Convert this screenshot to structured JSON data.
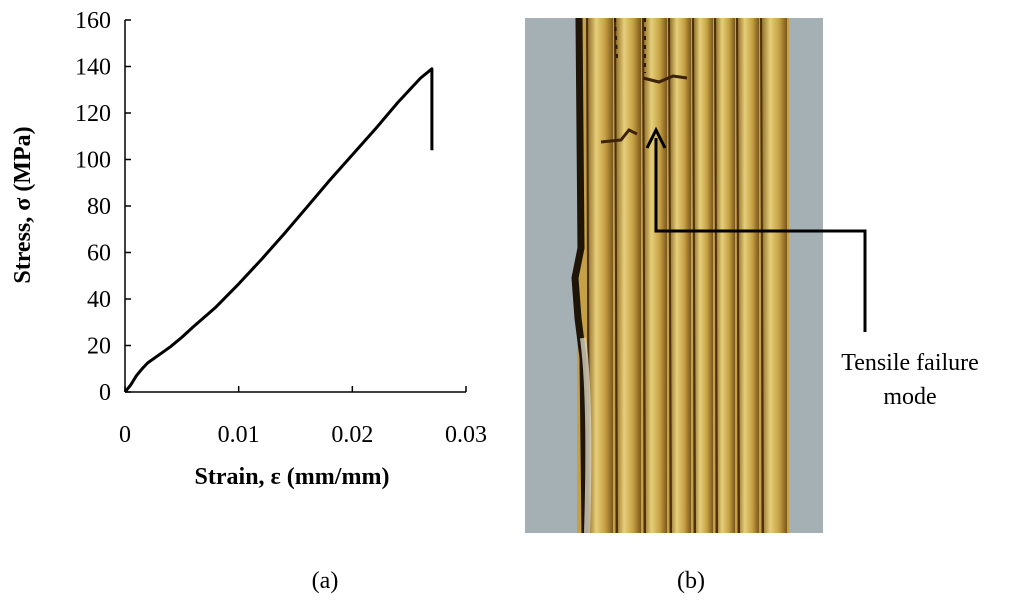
{
  "chart_data": {
    "type": "line",
    "title": "",
    "xlabel": "Strain, ε (mm/mm)",
    "ylabel": "Stress, σ (MPa)",
    "xlim": [
      0,
      0.03
    ],
    "ylim": [
      0,
      160
    ],
    "xticks": [
      0,
      0.01,
      0.02,
      0.03
    ],
    "xtick_labels": [
      "0",
      "0.01",
      "0.02",
      "0.03"
    ],
    "yticks": [
      0,
      20,
      40,
      60,
      80,
      100,
      120,
      140,
      160
    ],
    "ytick_labels": [
      "0",
      "20",
      "40",
      "60",
      "80",
      "100",
      "120",
      "140",
      "160"
    ],
    "grid": false,
    "series": [
      {
        "color": "#000000",
        "x": [
          0,
          0.0005,
          0.001,
          0.0015,
          0.002,
          0.003,
          0.004,
          0.005,
          0.006,
          0.008,
          0.01,
          0.012,
          0.014,
          0.016,
          0.018,
          0.02,
          0.022,
          0.024,
          0.026,
          0.027,
          0.027
        ],
        "y": [
          0,
          3,
          7,
          10,
          12.5,
          16,
          19.5,
          23.5,
          28,
          36.5,
          46.5,
          57,
          68,
          79.5,
          91,
          102,
          113,
          124.5,
          135,
          139,
          104
        ]
      }
    ]
  },
  "captions": {
    "a": "(a)",
    "b": "(b)"
  },
  "annotation": {
    "label_line1": "Tensile failure",
    "label_line2": "mode"
  },
  "colors": {
    "photo_background": "#a4b0b4",
    "strip_main": "#c6a044",
    "strip_highlight": "#e6cf7a",
    "strip_dark": "#5a3e12"
  }
}
